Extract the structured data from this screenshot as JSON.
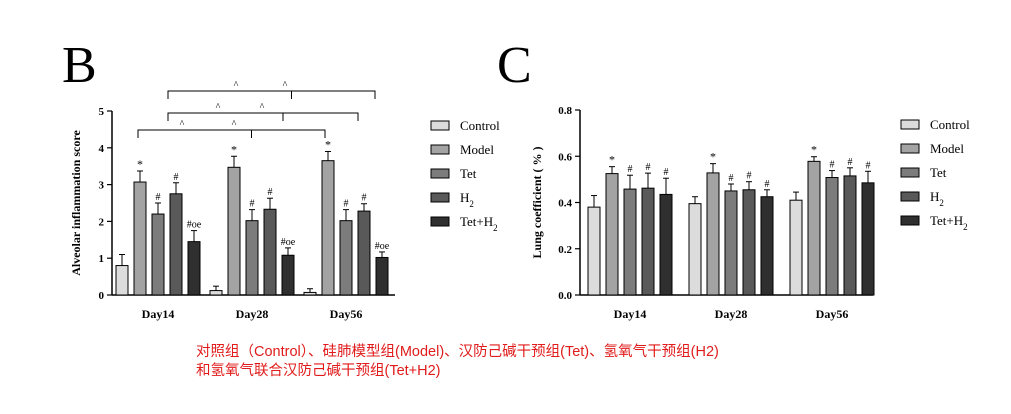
{
  "panel_b_letter": "B",
  "panel_c_letter": "C",
  "legend_b": [
    "Control",
    "Model",
    "Tet",
    "H2",
    "Tet+H2"
  ],
  "legend_c": [
    "Control",
    "Model",
    "Tet",
    "H2",
    "Tet+H2"
  ],
  "caption_line1": "对照组（Control）、硅肺模型组(Model)、汉防己碱干预组(Tet)、氢氧气干预组(H2)",
  "caption_line2": "和氢氧气联合汉防己碱干预组(Tet+H2)",
  "colors": {
    "Control": "#dcdcdc",
    "Model": "#a3a3a3",
    "Tet": "#7c7c7c",
    "H2": "#595959",
    "Tet+H2": "#2f2f2f"
  },
  "chart_data": [
    {
      "type": "bar",
      "ylabel": "Alveolar inflammation score",
      "ylim": [
        0,
        5
      ],
      "yticks": [
        "0",
        "1",
        "2",
        "3",
        "4",
        "5"
      ],
      "categories": [
        "Day14",
        "Day28",
        "Day56"
      ],
      "series": [
        {
          "name": "Control",
          "values": [
            0.8,
            0.12,
            0.07
          ],
          "errors": [
            0.3,
            0.12,
            0.1
          ],
          "marks": [
            "",
            "",
            ""
          ]
        },
        {
          "name": "Model",
          "values": [
            3.07,
            3.47,
            3.65
          ],
          "errors": [
            0.3,
            0.3,
            0.25
          ],
          "marks": [
            "*",
            "*",
            "*"
          ]
        },
        {
          "name": "Tet",
          "values": [
            2.2,
            2.02,
            2.02
          ],
          "errors": [
            0.3,
            0.3,
            0.3
          ],
          "marks": [
            "#",
            "#",
            "#"
          ]
        },
        {
          "name": "H2",
          "values": [
            2.75,
            2.33,
            2.28
          ],
          "errors": [
            0.3,
            0.3,
            0.2
          ],
          "marks": [
            "#",
            "#",
            "#"
          ]
        },
        {
          "name": "Tet+H2",
          "values": [
            1.45,
            1.08,
            1.02
          ],
          "errors": [
            0.3,
            0.2,
            0.15
          ],
          "marks": [
            "#oe",
            "#oe",
            "#oe"
          ]
        }
      ],
      "brackets": [
        {
          "from": "Day14",
          "to": "Day56",
          "marks": [
            "^",
            "^"
          ]
        },
        {
          "from": "Day14",
          "to": "Day56",
          "marks": [
            "^",
            "^"
          ]
        },
        {
          "from": "Day14",
          "to": "Day56",
          "marks": [
            "^",
            "^"
          ]
        }
      ]
    },
    {
      "type": "bar",
      "ylabel": "Lung coefficient ( % )",
      "ylim": [
        0,
        0.8
      ],
      "yticks": [
        "0.0",
        "0.2",
        "0.4",
        "0.6",
        "0.8"
      ],
      "categories": [
        "Day14",
        "Day28",
        "Day56"
      ],
      "series": [
        {
          "name": "Control",
          "values": [
            0.38,
            0.395,
            0.41
          ],
          "errors": [
            0.05,
            0.03,
            0.035
          ],
          "marks": [
            "",
            "",
            ""
          ]
        },
        {
          "name": "Model",
          "values": [
            0.525,
            0.528,
            0.578
          ],
          "errors": [
            0.03,
            0.04,
            0.02
          ],
          "marks": [
            "*",
            "*",
            "*"
          ]
        },
        {
          "name": "Tet",
          "values": [
            0.458,
            0.45,
            0.508
          ],
          "errors": [
            0.06,
            0.03,
            0.03
          ],
          "marks": [
            "#",
            "#",
            "#"
          ]
        },
        {
          "name": "H2",
          "values": [
            0.462,
            0.455,
            0.515
          ],
          "errors": [
            0.065,
            0.035,
            0.035
          ],
          "marks": [
            "#",
            "#",
            "#"
          ]
        },
        {
          "name": "Tet+H2",
          "values": [
            0.435,
            0.425,
            0.485
          ],
          "errors": [
            0.07,
            0.03,
            0.05
          ],
          "marks": [
            "#",
            "#",
            "#"
          ]
        }
      ]
    }
  ]
}
